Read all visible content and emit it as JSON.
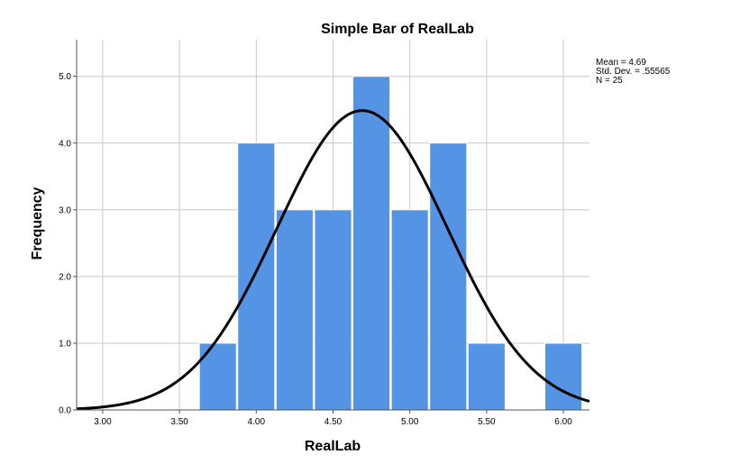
{
  "chart_data": {
    "type": "bar",
    "title": "Simple Bar of RealLab",
    "xlabel": "RealLab",
    "ylabel": "Frequency",
    "xlim": [
      2.83,
      6.17
    ],
    "ylim": [
      0,
      5.55
    ],
    "x_ticks": [
      "3.00",
      "3.50",
      "4.00",
      "4.50",
      "5.00",
      "5.50",
      "6.00"
    ],
    "y_ticks": [
      "0.0",
      "1.0",
      "2.0",
      "3.0",
      "4.0",
      "5.0"
    ],
    "bin_width": 0.25,
    "bins": [
      {
        "start": 3.625,
        "value": 1
      },
      {
        "start": 3.875,
        "value": 4
      },
      {
        "start": 4.125,
        "value": 3
      },
      {
        "start": 4.375,
        "value": 3
      },
      {
        "start": 4.625,
        "value": 5
      },
      {
        "start": 4.875,
        "value": 3
      },
      {
        "start": 5.125,
        "value": 4
      },
      {
        "start": 5.375,
        "value": 1
      },
      {
        "start": 5.875,
        "value": 1
      }
    ],
    "normal_curve": {
      "mean": 4.69,
      "sd": 0.55565,
      "n": 25
    },
    "stats_lines": [
      "Mean = 4.69",
      "Std. Dev. = .55565",
      "N = 25"
    ],
    "grid": true,
    "bar_color": "#5594e4",
    "curve_color": "#000000"
  }
}
